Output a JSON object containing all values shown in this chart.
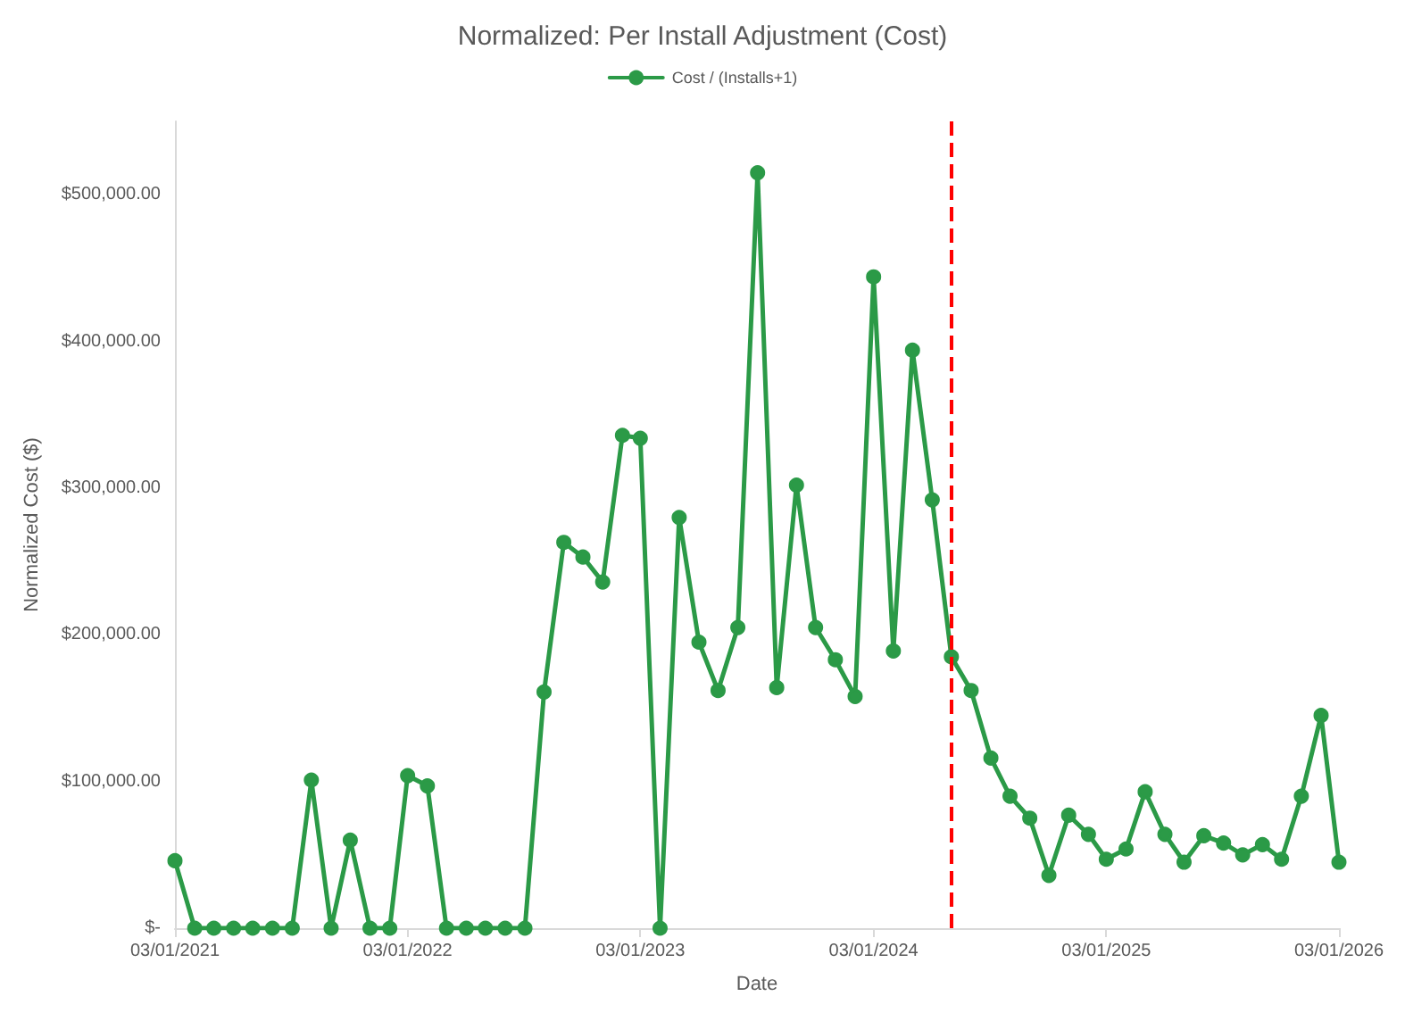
{
  "chart_data": {
    "type": "line",
    "title": "Normalized: Per Install Adjustment (Cost)",
    "xlabel": "Date",
    "ylabel": "Normalized Cost ($)",
    "x": [
      "2021-03",
      "2021-04",
      "2021-05",
      "2021-06",
      "2021-07",
      "2021-08",
      "2021-09",
      "2021-10",
      "2021-11",
      "2021-12",
      "2022-01",
      "2022-02",
      "2022-03",
      "2022-04",
      "2022-05",
      "2022-06",
      "2022-07",
      "2022-08",
      "2022-09",
      "2022-10",
      "2022-11",
      "2022-12",
      "2023-01",
      "2023-02",
      "2023-03",
      "2023-04",
      "2023-05",
      "2023-06",
      "2023-07",
      "2023-08",
      "2023-09",
      "2023-10",
      "2023-11",
      "2023-12",
      "2024-01",
      "2024-02",
      "2024-03",
      "2024-04",
      "2024-05",
      "2024-06",
      "2024-07",
      "2024-08",
      "2024-09",
      "2024-10",
      "2024-11",
      "2024-12",
      "2025-01",
      "2025-02",
      "2025-03",
      "2025-04",
      "2025-05",
      "2025-06",
      "2025-07",
      "2025-08",
      "2025-09",
      "2025-10",
      "2025-11",
      "2025-12",
      "2026-01",
      "2026-02",
      "2026-03"
    ],
    "series": [
      {
        "name": "Cost / (Installs+1)",
        "color": "#2b9a47",
        "values": [
          46000,
          0,
          0,
          0,
          0,
          0,
          0,
          101000,
          0,
          60000,
          0,
          0,
          104000,
          97000,
          0,
          0,
          0,
          0,
          0,
          161000,
          263000,
          253000,
          236000,
          336000,
          334000,
          0,
          280000,
          195000,
          162000,
          205000,
          515000,
          164000,
          302000,
          205000,
          183000,
          158000,
          444000,
          189000,
          394000,
          292000,
          185000,
          162000,
          116000,
          90000,
          75000,
          36000,
          77000,
          64000,
          47000,
          54000,
          93000,
          64000,
          45000,
          63000,
          58000,
          50000,
          57000,
          47000,
          90000,
          145000,
          45000
        ]
      }
    ],
    "xlim": [
      "2021-03-01",
      "2026-03-01"
    ],
    "xticks": [
      {
        "value": "2021-03-01",
        "label": "03/01/2021"
      },
      {
        "value": "2022-03-01",
        "label": "03/01/2022"
      },
      {
        "value": "2023-03-01",
        "label": "03/01/2023"
      },
      {
        "value": "2024-03-01",
        "label": "03/01/2024"
      },
      {
        "value": "2025-03-01",
        "label": "03/01/2025"
      },
      {
        "value": "2026-03-01",
        "label": "03/01/2026"
      }
    ],
    "ylim": [
      0,
      550000
    ],
    "yticks": [
      {
        "value": 0,
        "label": "$-"
      },
      {
        "value": 100000,
        "label": "$100,000.00"
      },
      {
        "value": 200000,
        "label": "$200,000.00"
      },
      {
        "value": 300000,
        "label": "$300,000.00"
      },
      {
        "value": 400000,
        "label": "$400,000.00"
      },
      {
        "value": 500000,
        "label": "$500,000.00"
      }
    ],
    "ref_lines": [
      {
        "axis": "x",
        "value": "2024-07-01",
        "color": "#ff0000",
        "line_style": "dashed"
      }
    ],
    "grid": false,
    "legend": "top",
    "marker": "circle",
    "line_style": "solid"
  }
}
